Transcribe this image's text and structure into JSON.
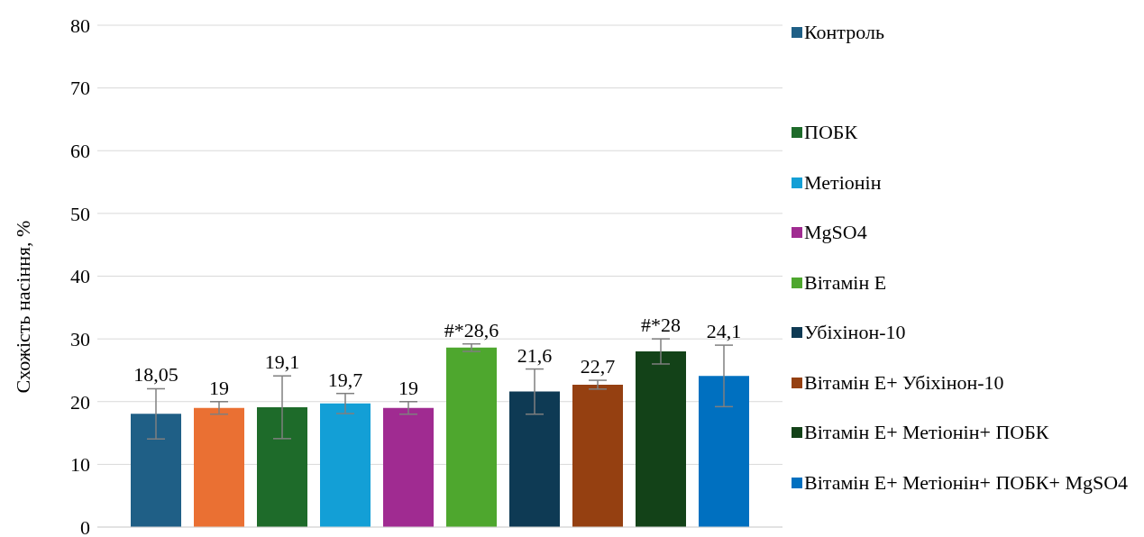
{
  "chart_data": {
    "type": "bar",
    "ylabel": "Схожість насіння, %",
    "categories": [
      null
    ],
    "series": [
      {
        "name": "Контроль",
        "color": "#1f5f86",
        "values": [
          18.05
        ],
        "errors": [
          4
        ],
        "value_labels": [
          "18,05"
        ]
      },
      {
        "color": "#ea7033",
        "values": [
          19
        ],
        "errors": [
          1
        ],
        "value_labels": [
          "19"
        ]
      },
      {
        "name": "ПОБК",
        "color": "#1e6b2a",
        "values": [
          19.1
        ],
        "errors": [
          5
        ],
        "value_labels": [
          "19,1"
        ]
      },
      {
        "name": "Метіонін",
        "color": "#139fd6",
        "values": [
          19.7
        ],
        "errors": [
          1.6
        ],
        "value_labels": [
          "19,7"
        ]
      },
      {
        "name": "MgSO4",
        "color": "#a02b91",
        "values": [
          19
        ],
        "errors": [
          1
        ],
        "value_labels": [
          "19"
        ]
      },
      {
        "name": "Вітамін Е",
        "color": "#4ea72e",
        "values": [
          28.6
        ],
        "errors": [
          0.6
        ],
        "value_labels": [
          "#*28,6"
        ]
      },
      {
        "name": "Убіхінон-10",
        "color": "#0e3a54",
        "values": [
          21.6
        ],
        "errors": [
          3.6
        ],
        "value_labels": [
          "21,6"
        ]
      },
      {
        "name": "Вітамін Е+ Убіхінон-10",
        "color": "#954011",
        "values": [
          22.7
        ],
        "errors": [
          0.7
        ],
        "value_labels": [
          "22,7"
        ]
      },
      {
        "name": "Вітамін Е+ Метіонін+ ПОБК",
        "color": "#134218",
        "values": [
          28
        ],
        "errors": [
          2
        ],
        "value_labels": [
          "#*28"
        ]
      },
      {
        "name": "Вітамін Е+ Метіонін+ ПОБК+ MgSO4",
        "color": "#0070c0",
        "values": [
          24.1
        ],
        "errors": [
          4.9
        ],
        "value_labels": [
          "24,1"
        ]
      }
    ],
    "ylim": [
      0,
      80
    ],
    "yticks": [
      0,
      10,
      20,
      30,
      40,
      50,
      60,
      70,
      80
    ],
    "grid": "y",
    "legend": "right"
  }
}
